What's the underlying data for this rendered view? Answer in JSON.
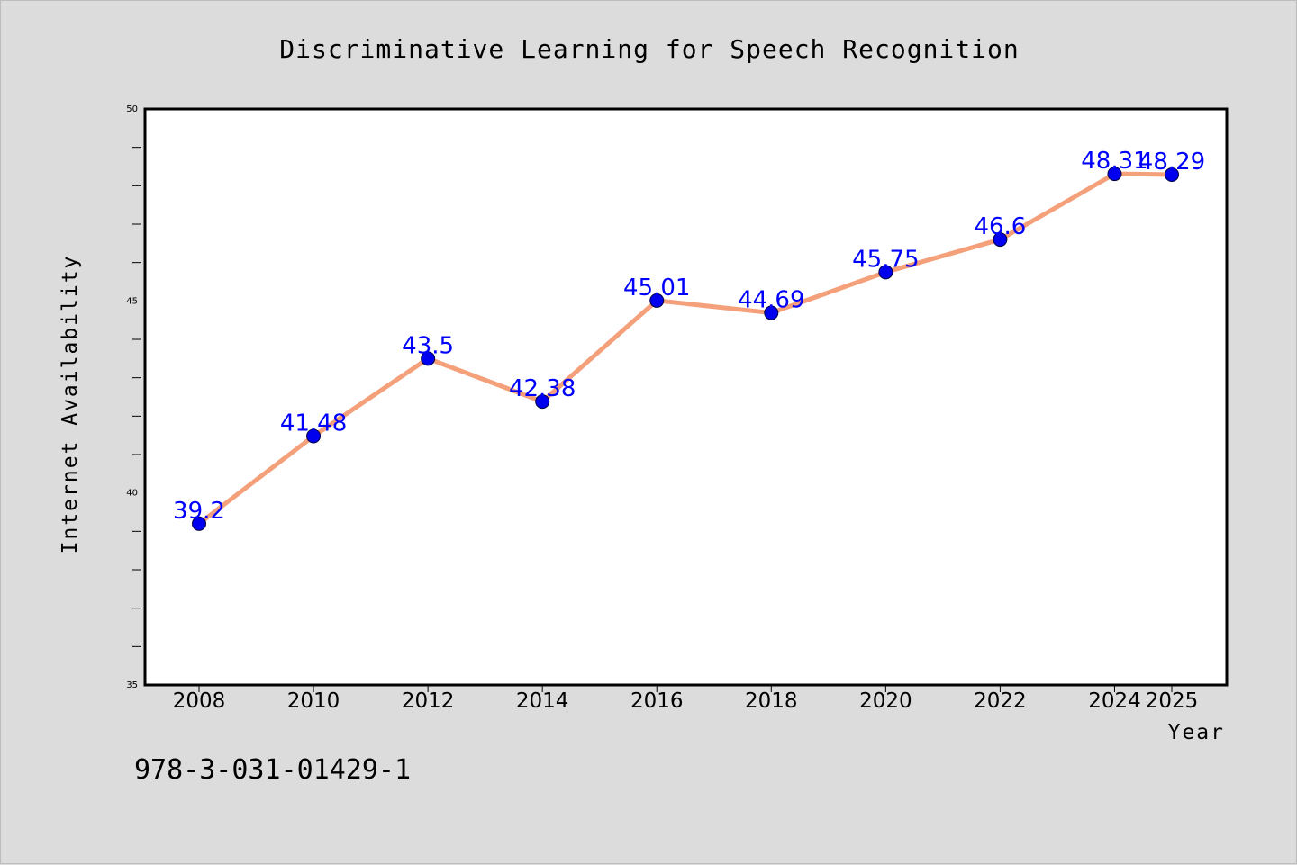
{
  "chart_data": {
    "type": "line",
    "title": "Discriminative Learning for Speech Recognition",
    "xlabel": "Year",
    "ylabel": "Internet Availability",
    "categories": [
      "2008",
      "2010",
      "2012",
      "2014",
      "2016",
      "2018",
      "2020",
      "2022",
      "2024",
      "2025"
    ],
    "series": [
      {
        "values": [
          39.2,
          41.48,
          43.5,
          42.38,
          45.01,
          44.69,
          45.75,
          46.6,
          48.31,
          48.29
        ],
        "labels": [
          "39.2",
          "41.48",
          "43.5",
          "42.38",
          "45.01",
          "44.69",
          "45.75",
          "46.6",
          "48.31",
          "48.29"
        ],
        "line_color": "#f4a07a",
        "marker_color": "#0000ee"
      }
    ],
    "ylim": [
      35,
      50
    ],
    "yticks": [
      "35",
      "40",
      "45",
      "50"
    ],
    "grid": false,
    "legend": "none"
  },
  "footer": {
    "isbn": "978-3-031-01429-1"
  },
  "colors": {
    "background": "#dcdcdc",
    "plot_background": "#ffffff",
    "data_label": "#0000ff"
  }
}
